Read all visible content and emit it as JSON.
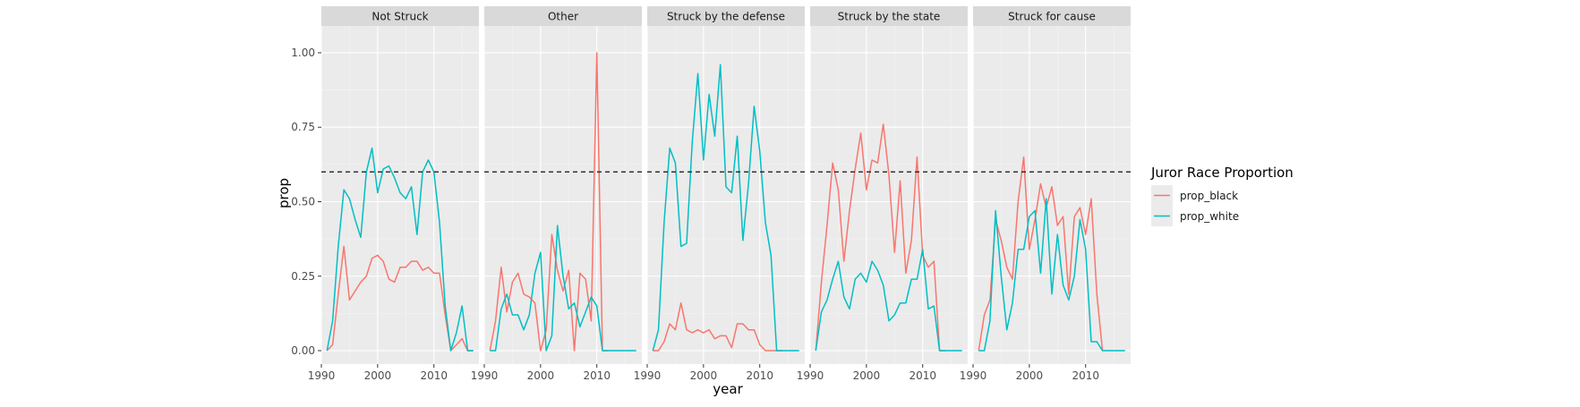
{
  "chart_data": {
    "type": "line",
    "xlabel": "year",
    "ylabel": "prop",
    "xlim": [
      1990,
      2018
    ],
    "ylim": [
      -0.045,
      1.09
    ],
    "x_ticks": [
      1990,
      2000,
      2010
    ],
    "y_ticks": [
      0.0,
      0.25,
      0.5,
      0.75,
      1.0
    ],
    "y_tick_labels": [
      "0.00",
      "0.25",
      "0.50",
      "0.75",
      "1.00"
    ],
    "grid": true,
    "reference_line": {
      "y": 0.6,
      "style": "dashed",
      "color": "#222222"
    },
    "legend": {
      "title": "Juror Race Proportion",
      "placement": "right",
      "entries": [
        {
          "name": "prop_black",
          "color": "#F8766D"
        },
        {
          "name": "prop_white",
          "color": "#00BFC4"
        }
      ]
    },
    "facets": [
      {
        "label": "Not Struck",
        "series": [
          {
            "name": "prop_black",
            "color": "#F8766D",
            "x": [
              1991,
              1992,
              1993,
              1994,
              1995,
              1996,
              1997,
              1998,
              1999,
              2000,
              2001,
              2002,
              2003,
              2004,
              2005,
              2006,
              2007,
              2008,
              2009,
              2010,
              2011,
              2012,
              2013,
              2014,
              2015,
              2016,
              2017
            ],
            "y": [
              0.0,
              0.02,
              0.19,
              0.35,
              0.17,
              0.2,
              0.23,
              0.25,
              0.31,
              0.32,
              0.3,
              0.24,
              0.23,
              0.28,
              0.28,
              0.3,
              0.3,
              0.27,
              0.28,
              0.26,
              0.26,
              0.12,
              0.0,
              0.02,
              0.04,
              0.0,
              0.0
            ]
          },
          {
            "name": "prop_white",
            "color": "#00BFC4",
            "x": [
              1991,
              1992,
              1993,
              1994,
              1995,
              1996,
              1997,
              1998,
              1999,
              2000,
              2001,
              2002,
              2003,
              2004,
              2005,
              2006,
              2007,
              2008,
              2009,
              2010,
              2011,
              2012,
              2013,
              2014,
              2015,
              2016,
              2017
            ],
            "y": [
              0.0,
              0.1,
              0.35,
              0.54,
              0.51,
              0.44,
              0.38,
              0.6,
              0.68,
              0.53,
              0.61,
              0.62,
              0.58,
              0.53,
              0.51,
              0.55,
              0.39,
              0.6,
              0.64,
              0.6,
              0.43,
              0.15,
              0.0,
              0.06,
              0.15,
              0.0,
              0.0
            ]
          }
        ]
      },
      {
        "label": "Other",
        "series": [
          {
            "name": "prop_black",
            "color": "#F8766D",
            "x": [
              1991,
              1992,
              1993,
              1994,
              1995,
              1996,
              1997,
              1998,
              1999,
              2000,
              2001,
              2002,
              2003,
              2004,
              2005,
              2006,
              2007,
              2008,
              2009,
              2010,
              2011,
              2012
            ],
            "y": [
              0.0,
              0.1,
              0.28,
              0.13,
              0.23,
              0.26,
              0.19,
              0.18,
              0.16,
              0.0,
              0.07,
              0.39,
              0.27,
              0.2,
              0.27,
              0.0,
              0.26,
              0.24,
              0.1,
              1.0,
              0.0,
              0.0
            ]
          },
          {
            "name": "prop_white",
            "color": "#00BFC4",
            "x": [
              1991,
              1992,
              1993,
              1994,
              1995,
              1996,
              1997,
              1998,
              1999,
              2000,
              2001,
              2002,
              2003,
              2004,
              2005,
              2006,
              2007,
              2008,
              2009,
              2010,
              2011,
              2012,
              2013,
              2014,
              2015,
              2016,
              2017
            ],
            "y": [
              0.0,
              0.0,
              0.14,
              0.19,
              0.12,
              0.12,
              0.07,
              0.12,
              0.26,
              0.33,
              0.0,
              0.05,
              0.42,
              0.25,
              0.14,
              0.16,
              0.08,
              0.13,
              0.18,
              0.15,
              0.0,
              0.0,
              0.0,
              0.0,
              0.0,
              0.0,
              0.0
            ]
          }
        ]
      },
      {
        "label": "Struck by the defense",
        "series": [
          {
            "name": "prop_black",
            "color": "#F8766D",
            "x": [
              1991,
              1992,
              1993,
              1994,
              1995,
              1996,
              1997,
              1998,
              1999,
              2000,
              2001,
              2002,
              2003,
              2004,
              2005,
              2006,
              2007,
              2008,
              2009,
              2010,
              2011,
              2012,
              2013,
              2014
            ],
            "y": [
              0.0,
              0.0,
              0.03,
              0.09,
              0.07,
              0.16,
              0.07,
              0.06,
              0.07,
              0.06,
              0.07,
              0.04,
              0.05,
              0.05,
              0.01,
              0.09,
              0.09,
              0.07,
              0.07,
              0.02,
              0.0,
              0.0,
              0.0,
              0.0
            ]
          },
          {
            "name": "prop_white",
            "color": "#00BFC4",
            "x": [
              1991,
              1992,
              1993,
              1994,
              1995,
              1996,
              1997,
              1998,
              1999,
              2000,
              2001,
              2002,
              2003,
              2004,
              2005,
              2006,
              2007,
              2008,
              2009,
              2010,
              2011,
              2012,
              2013,
              2014,
              2015,
              2016,
              2017
            ],
            "y": [
              0.0,
              0.07,
              0.43,
              0.68,
              0.63,
              0.35,
              0.36,
              0.7,
              0.93,
              0.64,
              0.86,
              0.72,
              0.96,
              0.55,
              0.53,
              0.72,
              0.37,
              0.56,
              0.82,
              0.67,
              0.43,
              0.32,
              0.0,
              0.0,
              0.0,
              0.0,
              0.0
            ]
          }
        ]
      },
      {
        "label": "Struck by the state",
        "series": [
          {
            "name": "prop_black",
            "color": "#F8766D",
            "x": [
              1991,
              1992,
              1993,
              1994,
              1995,
              1996,
              1997,
              1998,
              1999,
              2000,
              2001,
              2002,
              2003,
              2004,
              2005,
              2006,
              2007,
              2008,
              2009,
              2010,
              2011,
              2012,
              2013,
              2014
            ],
            "y": [
              0.0,
              0.23,
              0.42,
              0.63,
              0.54,
              0.3,
              0.47,
              0.61,
              0.73,
              0.54,
              0.64,
              0.63,
              0.76,
              0.59,
              0.33,
              0.57,
              0.26,
              0.37,
              0.65,
              0.32,
              0.28,
              0.3,
              0.0,
              0.0
            ]
          },
          {
            "name": "prop_white",
            "color": "#00BFC4",
            "x": [
              1991,
              1992,
              1993,
              1994,
              1995,
              1996,
              1997,
              1998,
              1999,
              2000,
              2001,
              2002,
              2003,
              2004,
              2005,
              2006,
              2007,
              2008,
              2009,
              2010,
              2011,
              2012,
              2013,
              2014,
              2015,
              2016,
              2017
            ],
            "y": [
              0.0,
              0.13,
              0.17,
              0.24,
              0.3,
              0.18,
              0.14,
              0.24,
              0.26,
              0.23,
              0.3,
              0.27,
              0.22,
              0.1,
              0.12,
              0.16,
              0.16,
              0.24,
              0.24,
              0.34,
              0.14,
              0.15,
              0.0,
              0.0,
              0.0,
              0.0,
              0.0
            ]
          }
        ]
      },
      {
        "label": "Struck for cause",
        "series": [
          {
            "name": "prop_black",
            "color": "#F8766D",
            "x": [
              1991,
              1992,
              1993,
              1994,
              1995,
              1996,
              1997,
              1998,
              1999,
              2000,
              2001,
              2002,
              2003,
              2004,
              2005,
              2006,
              2007,
              2008,
              2009,
              2010,
              2011,
              2012,
              2013
            ],
            "y": [
              0.0,
              0.12,
              0.17,
              0.44,
              0.37,
              0.28,
              0.24,
              0.5,
              0.65,
              0.34,
              0.44,
              0.56,
              0.48,
              0.55,
              0.42,
              0.45,
              0.19,
              0.45,
              0.48,
              0.39,
              0.51,
              0.19,
              0.0
            ]
          },
          {
            "name": "prop_white",
            "color": "#00BFC4",
            "x": [
              1991,
              1992,
              1993,
              1994,
              1995,
              1996,
              1997,
              1998,
              1999,
              2000,
              2001,
              2002,
              2003,
              2004,
              2005,
              2006,
              2007,
              2008,
              2009,
              2010,
              2011,
              2012,
              2013,
              2014,
              2015,
              2016,
              2017
            ],
            "y": [
              0.0,
              0.0,
              0.1,
              0.47,
              0.25,
              0.07,
              0.16,
              0.34,
              0.34,
              0.45,
              0.47,
              0.26,
              0.51,
              0.19,
              0.39,
              0.22,
              0.17,
              0.25,
              0.44,
              0.34,
              0.03,
              0.03,
              0.0,
              0.0,
              0.0,
              0.0,
              0.0
            ]
          }
        ]
      }
    ]
  }
}
